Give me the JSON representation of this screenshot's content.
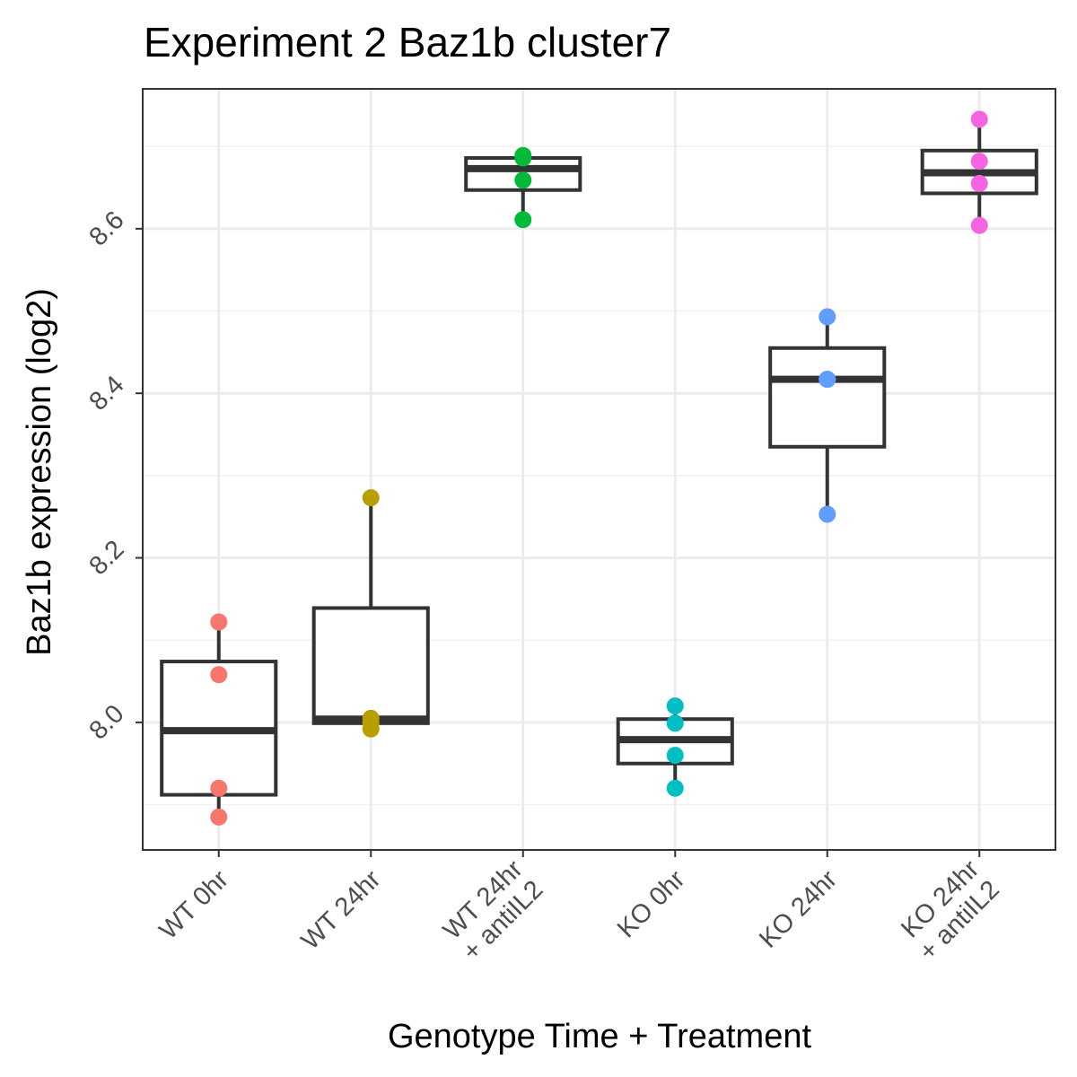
{
  "chart_data": {
    "type": "box",
    "title": "Experiment 2 Baz1b cluster7",
    "xlabel": "Genotype Time + Treatment",
    "ylabel": "Baz1b expression (log2)",
    "ylim": [
      7.845,
      8.77
    ],
    "y_ticks": [
      8.0,
      8.2,
      8.4,
      8.6
    ],
    "y_tick_labels": [
      "8.0",
      "8.2",
      "8.4",
      "8.6"
    ],
    "y_minor_ticks": [
      7.9,
      8.1,
      8.3,
      8.5,
      8.7
    ],
    "grid": true,
    "legend": "none",
    "categories": [
      {
        "label_lines": [
          "WT 0hr"
        ],
        "color": "#F8766D",
        "box": {
          "min": 7.885,
          "q1": 7.912,
          "median": 7.99,
          "q3": 8.074,
          "max": 8.122
        },
        "points": [
          8.122,
          8.058,
          7.92,
          7.885
        ]
      },
      {
        "label_lines": [
          "WT 24hr"
        ],
        "color": "#B79F00",
        "box": {
          "min": 7.992,
          "q1": 7.999,
          "median": 8.004,
          "q3": 8.139,
          "max": 8.273
        },
        "points": [
          8.273,
          8.005,
          8.0,
          7.992
        ]
      },
      {
        "label_lines": [
          "WT 24hr",
          "+ antiIL2"
        ],
        "color": "#00BA38",
        "box": {
          "min": 8.611,
          "q1": 8.647,
          "median": 8.673,
          "q3": 8.686,
          "max": 8.689
        },
        "points": [
          8.689,
          8.686,
          8.659,
          8.611
        ]
      },
      {
        "label_lines": [
          "KO 0hr"
        ],
        "color": "#00BFC4",
        "box": {
          "min": 7.92,
          "q1": 7.95,
          "median": 7.979,
          "q3": 8.004,
          "max": 8.02
        },
        "points": [
          8.02,
          7.999,
          7.96,
          7.92
        ]
      },
      {
        "label_lines": [
          "KO 24hr"
        ],
        "color": "#619CFF",
        "box": {
          "min": 8.253,
          "q1": 8.335,
          "median": 8.417,
          "q3": 8.455,
          "max": 8.493
        },
        "points": [
          8.493,
          8.417,
          8.417,
          8.253
        ]
      },
      {
        "label_lines": [
          "KO 24hr",
          "+ antiIL2"
        ],
        "color": "#F564E3",
        "box": {
          "min": 8.604,
          "q1": 8.643,
          "median": 8.668,
          "q3": 8.695,
          "max": 8.733
        },
        "points": [
          8.733,
          8.682,
          8.655,
          8.604
        ]
      }
    ]
  }
}
